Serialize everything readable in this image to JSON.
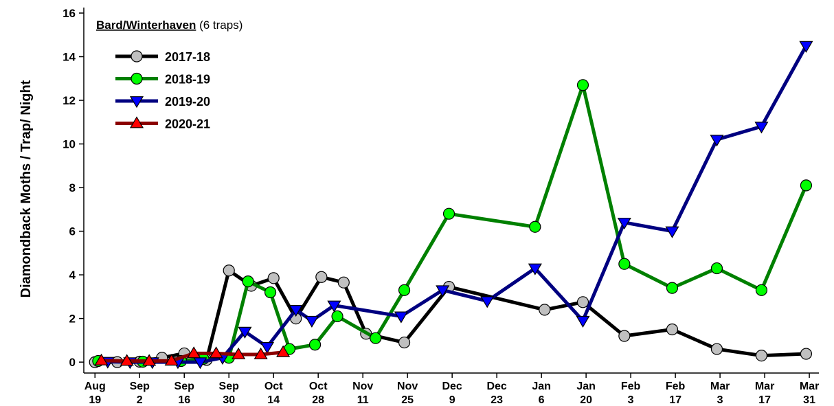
{
  "chart_data": {
    "type": "line",
    "ylabel": "Diamondback Moths / Trap/ Night",
    "annotation": {
      "title": "Bard/Winterhaven",
      "note": "(6 traps)"
    },
    "legend": "upper left",
    "xlim": [
      -3.5,
      227
    ],
    "ylim": [
      -0.5,
      16
    ],
    "yticks": [
      0,
      2,
      4,
      6,
      8,
      10,
      12,
      14,
      16
    ],
    "xticks": [
      {
        "value": 0,
        "label": "Aug\n19"
      },
      {
        "value": 14,
        "label": "Sep\n2"
      },
      {
        "value": 28,
        "label": "Sep\n16"
      },
      {
        "value": 42,
        "label": "Sep\n30"
      },
      {
        "value": 56,
        "label": "Oct\n14"
      },
      {
        "value": 70,
        "label": "Oct\n28"
      },
      {
        "value": 84,
        "label": "Nov\n11"
      },
      {
        "value": 98,
        "label": "Nov\n25"
      },
      {
        "value": 112,
        "label": "Dec\n9"
      },
      {
        "value": 126,
        "label": "Dec\n23"
      },
      {
        "value": 140,
        "label": "Jan\n6"
      },
      {
        "value": 154,
        "label": "Jan\n20"
      },
      {
        "value": 168,
        "label": "Feb\n3"
      },
      {
        "value": 182,
        "label": "Feb\n17"
      },
      {
        "value": 196,
        "label": "Mar\n3"
      },
      {
        "value": 210,
        "label": "Mar\n17"
      },
      {
        "value": 224,
        "label": "Mar\n31"
      }
    ],
    "series": [
      {
        "name": "2017-18",
        "color": "#000000",
        "marker_color": "#c0c0c0",
        "marker": "circle",
        "x": [
          0,
          7,
          14,
          21,
          28,
          35,
          42,
          49,
          56,
          63,
          71,
          78,
          85,
          97,
          111,
          141,
          153,
          166,
          181,
          195,
          209,
          223
        ],
        "values": [
          0,
          0,
          0.02,
          0.2,
          0.4,
          0.1,
          4.2,
          3.5,
          3.85,
          2.0,
          3.9,
          3.65,
          1.3,
          0.9,
          3.45,
          2.4,
          2.75,
          1.2,
          1.5,
          0.6,
          0.3,
          0.38
        ]
      },
      {
        "name": "2018-19",
        "color": "#008000",
        "marker_color": "#00ff00",
        "marker": "circle",
        "x": [
          1,
          15,
          27,
          34,
          42,
          48,
          55,
          61,
          69,
          76,
          88,
          97,
          111,
          138,
          153,
          166,
          181,
          195,
          209,
          223
        ],
        "values": [
          0.05,
          0.02,
          0.05,
          0.15,
          0.2,
          3.7,
          3.2,
          0.6,
          0.8,
          2.1,
          1.1,
          3.3,
          6.8,
          6.2,
          12.7,
          4.5,
          3.4,
          4.3,
          3.3,
          8.1
        ]
      },
      {
        "name": "2019-20",
        "color": "#000080",
        "marker_color": "#0000ff",
        "marker": "triangle-down",
        "x": [
          4,
          11,
          18,
          26,
          33,
          40,
          47,
          54,
          63,
          68,
          75,
          96,
          109,
          123,
          138,
          153,
          166,
          181,
          195,
          209,
          223
        ],
        "values": [
          0.02,
          0,
          0,
          0,
          0,
          0.2,
          1.4,
          0.7,
          2.4,
          1.9,
          2.6,
          2.1,
          3.3,
          2.8,
          4.3,
          1.9,
          6.4,
          6.0,
          10.2,
          10.8,
          14.5
        ]
      },
      {
        "name": "2020-21",
        "color": "#8b0000",
        "marker_color": "#ff0000",
        "marker": "triangle-up",
        "x": [
          2,
          10,
          17,
          24,
          31,
          38,
          45,
          52,
          59
        ],
        "values": [
          0.07,
          0.05,
          0.05,
          0.06,
          0.4,
          0.4,
          0.35,
          0.35,
          0.45
        ]
      }
    ]
  }
}
